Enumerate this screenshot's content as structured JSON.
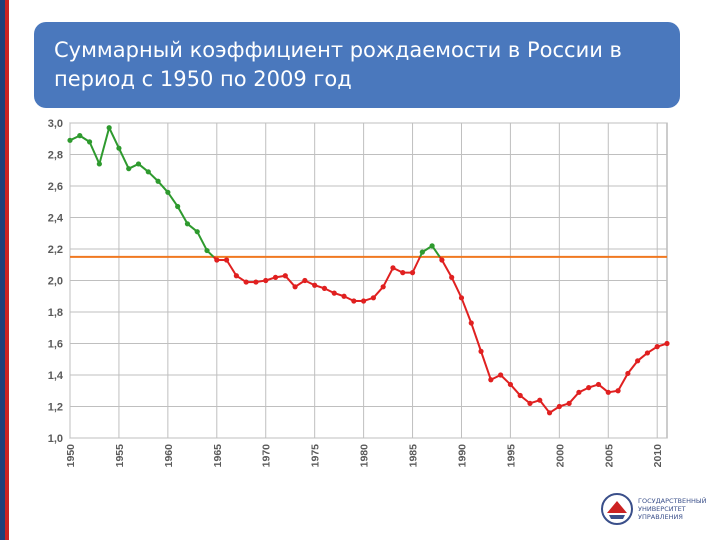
{
  "slide": {
    "title": "Суммарный коэффициент рождаемости в России в период с 1950 по 2009 год"
  },
  "logo": {
    "lines": [
      "ГОСУДАРСТВЕННЫЙ",
      "УНИВЕРСИТЕТ",
      "УПРАВЛЕНИЯ"
    ]
  },
  "colors": {
    "title_bg": "#4a78bd",
    "above_replacement": "#2e9a2e",
    "below_replacement": "#e02020",
    "replacement_line": "#f07820",
    "grid": "#bfbfbf"
  },
  "chart_data": {
    "type": "line",
    "title": "",
    "xlabel": "",
    "ylabel": "",
    "xlim": [
      1950,
      2011
    ],
    "ylim": [
      1.0,
      3.0
    ],
    "x_ticks": [
      "1950",
      "1955",
      "1960",
      "1965",
      "1970",
      "1975",
      "1980",
      "1985",
      "1990",
      "1995",
      "2000",
      "2005",
      "2010"
    ],
    "y_ticks": [
      "1,0",
      "1,2",
      "1,4",
      "1,6",
      "1,8",
      "2,0",
      "2,2",
      "2,4",
      "2,6",
      "2,8",
      "3,0"
    ],
    "grid": true,
    "reference_line": {
      "y": 2.15
    },
    "series": [
      {
        "x": [
          1950,
          1951,
          1952,
          1953,
          1954,
          1955,
          1956,
          1957,
          1958,
          1959,
          1960,
          1961,
          1962,
          1963,
          1964,
          1965,
          1966,
          1967,
          1968,
          1969,
          1970,
          1971,
          1972,
          1973,
          1974,
          1975,
          1976,
          1977,
          1978,
          1979,
          1980,
          1981,
          1982,
          1983,
          1984,
          1985,
          1986,
          1987,
          1988,
          1989,
          1990,
          1991,
          1992,
          1993,
          1994,
          1995,
          1996,
          1997,
          1998,
          1999,
          2000,
          2001,
          2002,
          2003,
          2004,
          2005,
          2006,
          2007,
          2008,
          2009,
          2010,
          2011
        ],
        "y": [
          2.89,
          2.92,
          2.88,
          2.74,
          2.97,
          2.84,
          2.71,
          2.74,
          2.69,
          2.63,
          2.56,
          2.47,
          2.36,
          2.31,
          2.19,
          2.13,
          2.13,
          2.03,
          1.99,
          1.99,
          2.0,
          2.02,
          2.03,
          1.96,
          2.0,
          1.97,
          1.95,
          1.92,
          1.9,
          1.87,
          1.87,
          1.89,
          1.96,
          2.08,
          2.05,
          2.05,
          2.18,
          2.22,
          2.13,
          2.02,
          1.89,
          1.73,
          1.55,
          1.37,
          1.4,
          1.34,
          1.27,
          1.22,
          1.24,
          1.16,
          1.2,
          1.22,
          1.29,
          1.32,
          1.34,
          1.29,
          1.3,
          1.41,
          1.49,
          1.54,
          1.58,
          1.6
        ]
      }
    ]
  }
}
